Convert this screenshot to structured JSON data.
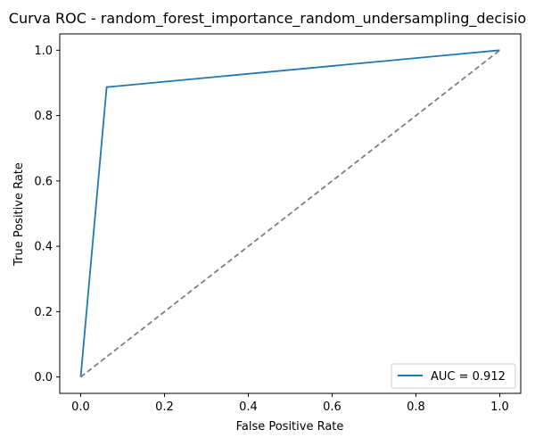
{
  "chart_data": {
    "type": "line",
    "title": "Curva ROC - random_forest_importance_random_undersampling_decisio",
    "xlabel": "False Positive Rate",
    "ylabel": "True Positive Rate",
    "xlim": [
      -0.05,
      1.05
    ],
    "ylim": [
      -0.05,
      1.05
    ],
    "x_ticks": [
      "0.0",
      "0.2",
      "0.4",
      "0.6",
      "0.8",
      "1.0"
    ],
    "y_ticks": [
      "0.0",
      "0.2",
      "0.4",
      "0.6",
      "0.8",
      "1.0"
    ],
    "grid": false,
    "legend_position": "lower-right",
    "series": [
      {
        "name": "AUC = 0.912",
        "color": "#1f77b4",
        "style": "solid",
        "x": [
          0.0,
          0.062,
          1.0
        ],
        "y": [
          0.0,
          0.887,
          1.0
        ]
      },
      {
        "color": "#7f7f7f",
        "style": "dashed",
        "x": [
          0.0,
          1.0
        ],
        "y": [
          0.0,
          1.0
        ]
      }
    ]
  }
}
